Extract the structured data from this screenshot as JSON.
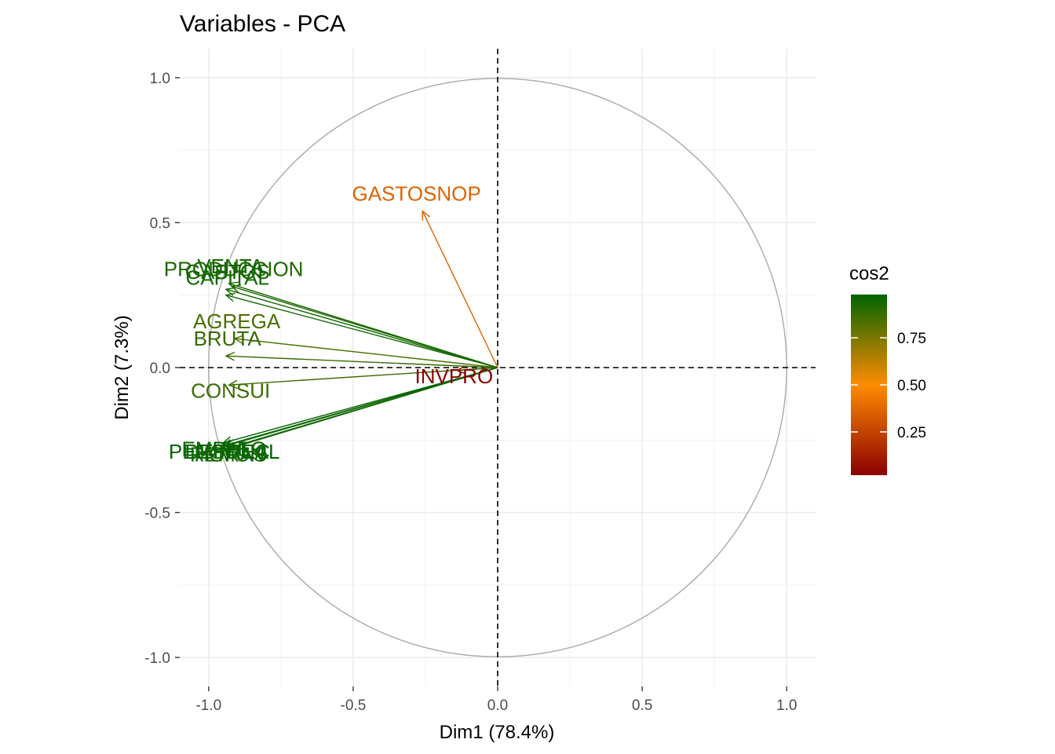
{
  "chart_data": {
    "type": "scatter",
    "subtype": "pca-variables-correlation-circle",
    "title": "Variables - PCA",
    "xlabel": "Dim1 (78.4%)",
    "ylabel": "Dim2 (7.3%)",
    "xlim": [
      -1.1,
      1.1
    ],
    "ylim": [
      -1.1,
      1.1
    ],
    "x_ticks": [
      "-1.0",
      "-0.5",
      "0.0",
      "0.5",
      "1.0"
    ],
    "y_ticks": [
      "1.0",
      "0.5",
      "0.0",
      "-0.5",
      "-1.0"
    ],
    "grid": true,
    "unit_circle": true,
    "reference_lines": [
      "x = 0 dashed",
      "y = 0 dashed"
    ],
    "legend": {
      "title": "cos2",
      "position": "right",
      "type": "colorbar",
      "ticks": [
        "0.75",
        "0.50",
        "0.25"
      ],
      "colors": {
        "low": "#8b0000",
        "mid": "#ff8c00",
        "high": "#006400"
      }
    },
    "variables": [
      {
        "name": "GASTOSNOP",
        "dim1": -0.26,
        "dim2": 0.54,
        "cos2": 0.36
      },
      {
        "name": "INVPRO",
        "dim1": -0.14,
        "dim2": -0.01,
        "cos2": 0.02
      },
      {
        "name": "AGREGA",
        "dim1": -0.91,
        "dim2": 0.1,
        "cos2": 0.84
      },
      {
        "name": "BRUTA",
        "dim1": -0.94,
        "dim2": 0.04,
        "cos2": 0.88
      },
      {
        "name": "CONSUI",
        "dim1": -0.93,
        "dim2": -0.06,
        "cos2": 0.87
      },
      {
        "name": "VENTA",
        "dim1": -0.93,
        "dim2": 0.29,
        "cos2": 0.94
      },
      {
        "name": "GASTOS",
        "dim1": -0.94,
        "dim2": 0.27,
        "cos2": 0.95
      },
      {
        "name": "CAPITAL",
        "dim1": -0.94,
        "dim2": 0.25,
        "cos2": 0.95
      },
      {
        "name": "PRODUCCION",
        "dim1": -0.92,
        "dim2": 0.28,
        "cos2": 0.93
      },
      {
        "name": "PERSONAL",
        "dim1": -0.95,
        "dim2": -0.27,
        "cos2": 0.98
      },
      {
        "name": "REMUN",
        "dim1": -0.94,
        "dim2": -0.28,
        "cos2": 0.96
      },
      {
        "name": "EMPLEO",
        "dim1": -0.95,
        "dim2": -0.26,
        "cos2": 0.97
      },
      {
        "name": "HORAS",
        "dim1": -0.93,
        "dim2": -0.28,
        "cos2": 0.95
      },
      {
        "name": "DEPREC",
        "dim1": -0.94,
        "dim2": -0.27,
        "cos2": 0.96
      }
    ]
  }
}
